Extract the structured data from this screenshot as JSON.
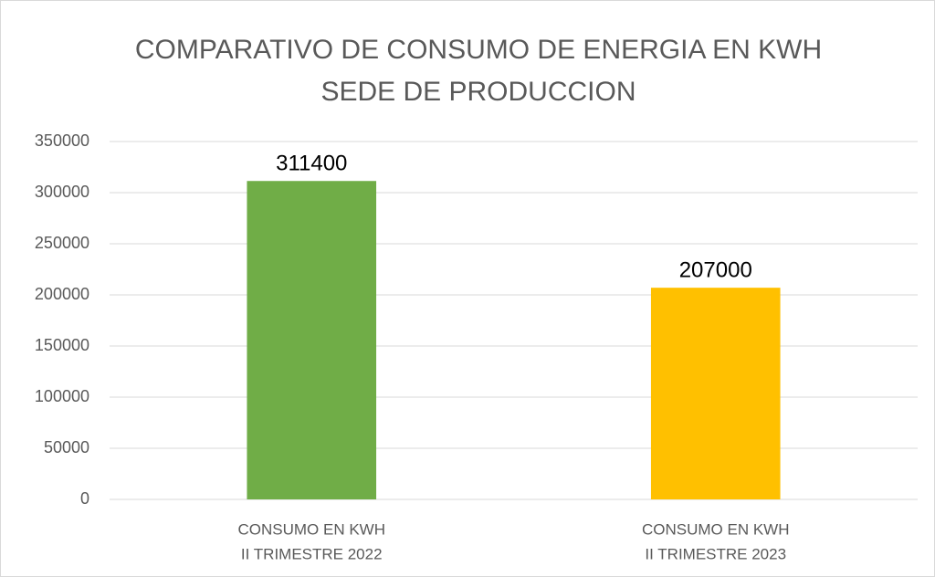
{
  "chart_data": {
    "type": "bar",
    "title": [
      "COMPARATIVO DE CONSUMO DE ENERGIA EN KWH",
      "SEDE DE PRODUCCION"
    ],
    "categories": [
      [
        "CONSUMO EN KWH",
        "II TRIMESTRE 2022"
      ],
      [
        "CONSUMO EN KWH",
        "II TRIMESTRE 2023"
      ]
    ],
    "values": [
      311400,
      207000
    ],
    "colors": [
      "#70ad47",
      "#ffc000"
    ],
    "ylim": [
      0,
      350000
    ],
    "yticks": [
      0,
      50000,
      100000,
      150000,
      200000,
      250000,
      300000,
      350000
    ],
    "grid": true
  }
}
